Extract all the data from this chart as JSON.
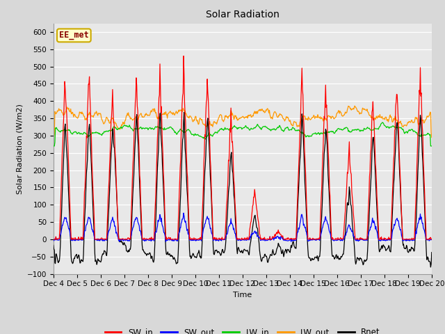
{
  "title": "Solar Radiation",
  "ylabel": "Solar Radiation (W/m2)",
  "xlabel": "Time",
  "ylim": [
    -100,
    625
  ],
  "yticks": [
    -100,
    -50,
    0,
    50,
    100,
    150,
    200,
    250,
    300,
    350,
    400,
    450,
    500,
    550,
    600
  ],
  "n_days": 16,
  "start_day": 4,
  "colors": {
    "SW_in": "#ff0000",
    "SW_out": "#0000ff",
    "LW_in": "#00cc00",
    "LW_out": "#ff9900",
    "Rnet": "#000000"
  },
  "fig_bg": "#d8d8d8",
  "plot_bg": "#e8e8e8",
  "annotation_text": "EE_met",
  "annotation_bg": "#ffffcc",
  "annotation_border": "#ccaa00",
  "figsize": [
    6.4,
    4.8
  ],
  "dpi": 100,
  "samples_per_day": 48
}
